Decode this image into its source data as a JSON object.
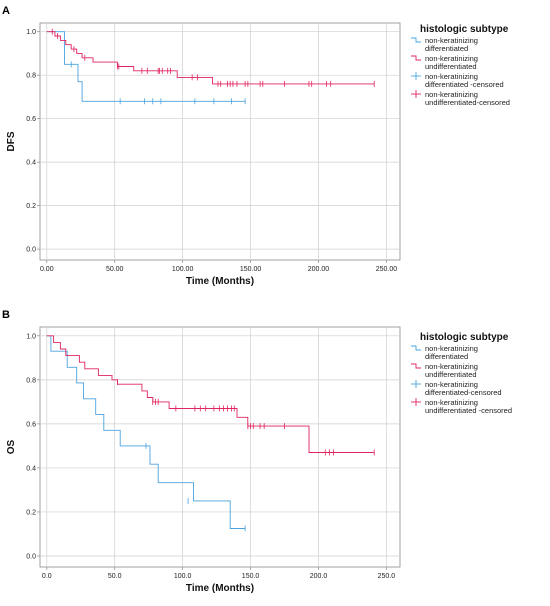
{
  "chart_data": [
    {
      "panel": "A",
      "type": "line",
      "xlabel": "Time (Months)",
      "ylabel": "DFS",
      "xlim": [
        -5,
        260
      ],
      "ylim": [
        -0.05,
        1.04
      ],
      "xticks": [
        0,
        50,
        100,
        150,
        200,
        250
      ],
      "xtick_labels": [
        "0.00",
        "50.00",
        "100.00",
        "150.00",
        "200.00",
        "250.00"
      ],
      "yticks": [
        0,
        0.2,
        0.4,
        0.6,
        0.8,
        1.0
      ],
      "ytick_labels": [
        "0.0",
        "0.2",
        "0.4",
        "0.6",
        "0.8",
        "1.0"
      ],
      "grid": true,
      "legend_title": "histologic subtype",
      "legend_placement": "right",
      "legend": [
        {
          "label": "non-keratinizing differentiated",
          "color": "#4aa3df",
          "marker": "step"
        },
        {
          "label": "non-keratinizing undifferentiated",
          "color": "#e0245e",
          "marker": "step"
        },
        {
          "label": "non-keratinizing differentiated -censored",
          "color": "#4aa3df",
          "marker": "cross"
        },
        {
          "label": "non-keratinizing undifferentiated-censored",
          "color": "#e0245e",
          "marker": "cross"
        }
      ],
      "series": [
        {
          "color": "#4aa3df",
          "steps": [
            [
              0,
              1.0
            ],
            [
              13,
              1.0
            ],
            [
              13,
              0.85
            ],
            [
              23,
              0.85
            ],
            [
              23,
              0.77
            ],
            [
              26,
              0.77
            ],
            [
              26,
              0.68
            ],
            [
              146,
              0.68
            ]
          ],
          "censored": [
            [
              18,
              0.85
            ],
            [
              54,
              0.68
            ],
            [
              72,
              0.68
            ],
            [
              78,
              0.68
            ],
            [
              84,
              0.68
            ],
            [
              109,
              0.68
            ],
            [
              123,
              0.68
            ],
            [
              136,
              0.68
            ],
            [
              146,
              0.68
            ]
          ]
        },
        {
          "color": "#e0245e",
          "steps": [
            [
              0,
              1.0
            ],
            [
              6,
              1.0
            ],
            [
              6,
              0.98
            ],
            [
              10,
              0.98
            ],
            [
              10,
              0.96
            ],
            [
              14,
              0.96
            ],
            [
              14,
              0.94
            ],
            [
              18,
              0.94
            ],
            [
              18,
              0.92
            ],
            [
              22,
              0.92
            ],
            [
              22,
              0.9
            ],
            [
              26,
              0.9
            ],
            [
              26,
              0.88
            ],
            [
              34,
              0.88
            ],
            [
              34,
              0.86
            ],
            [
              52,
              0.86
            ],
            [
              52,
              0.84
            ],
            [
              64,
              0.84
            ],
            [
              64,
              0.82
            ],
            [
              96,
              0.82
            ],
            [
              96,
              0.79
            ],
            [
              122,
              0.79
            ],
            [
              122,
              0.76
            ],
            [
              241,
              0.76
            ]
          ],
          "censored": [
            [
              4,
              1.0
            ],
            [
              8,
              0.98
            ],
            [
              20,
              0.92
            ],
            [
              28,
              0.88
            ],
            [
              52,
              0.84
            ],
            [
              53,
              0.84
            ],
            [
              70,
              0.82
            ],
            [
              74,
              0.82
            ],
            [
              82,
              0.82
            ],
            [
              83,
              0.82
            ],
            [
              85,
              0.82
            ],
            [
              89,
              0.82
            ],
            [
              91,
              0.82
            ],
            [
              107,
              0.79
            ],
            [
              111,
              0.79
            ],
            [
              126,
              0.76
            ],
            [
              128,
              0.76
            ],
            [
              133,
              0.76
            ],
            [
              135,
              0.76
            ],
            [
              137,
              0.76
            ],
            [
              140,
              0.76
            ],
            [
              146,
              0.76
            ],
            [
              148,
              0.76
            ],
            [
              157,
              0.76
            ],
            [
              159,
              0.76
            ],
            [
              175,
              0.76
            ],
            [
              193,
              0.76
            ],
            [
              195,
              0.76
            ],
            [
              206,
              0.76
            ],
            [
              209,
              0.76
            ],
            [
              241,
              0.76
            ]
          ]
        }
      ]
    },
    {
      "panel": "B",
      "type": "line",
      "xlabel": "Time (Months)",
      "ylabel": "OS",
      "xlim": [
        -5,
        260
      ],
      "ylim": [
        -0.05,
        1.04
      ],
      "xticks": [
        0,
        50,
        100,
        150,
        200,
        250
      ],
      "xtick_labels": [
        "0.0",
        "50.0",
        "100.0",
        "150.0",
        "200.0",
        "250.0"
      ],
      "yticks": [
        0,
        0.2,
        0.4,
        0.6,
        0.8,
        1.0
      ],
      "ytick_labels": [
        "0.0",
        "0.2",
        "0.4",
        "0.6",
        "0.8",
        "1.0"
      ],
      "grid": true,
      "legend_title": "histologic subtype",
      "legend_placement": "right",
      "legend": [
        {
          "label": "non-keratinizing differentiated",
          "color": "#4aa3df",
          "marker": "step"
        },
        {
          "label": "non-keratinizing undifferentiated",
          "color": "#e0245e",
          "marker": "step"
        },
        {
          "label": "non-keratinizing differentiated-censored",
          "color": "#4aa3df",
          "marker": "cross"
        },
        {
          "label": "non-keratinizing undifferentiated -censored",
          "color": "#e0245e",
          "marker": "cross"
        }
      ],
      "series": [
        {
          "color": "#4aa3df",
          "steps": [
            [
              0,
              1.0
            ],
            [
              3,
              1.0
            ],
            [
              3,
              0.93
            ],
            [
              15,
              0.93
            ],
            [
              15,
              0.857
            ],
            [
              22,
              0.857
            ],
            [
              22,
              0.786
            ],
            [
              27,
              0.786
            ],
            [
              27,
              0.714
            ],
            [
              36,
              0.714
            ],
            [
              36,
              0.643
            ],
            [
              42,
              0.643
            ],
            [
              42,
              0.571
            ],
            [
              54,
              0.571
            ],
            [
              54,
              0.5
            ],
            [
              76,
              0.5
            ],
            [
              76,
              0.417
            ],
            [
              82,
              0.417
            ],
            [
              82,
              0.333
            ],
            [
              108,
              0.333
            ],
            [
              108,
              0.25
            ],
            [
              135,
              0.25
            ],
            [
              135,
              0.125
            ],
            [
              146,
              0.125
            ]
          ],
          "censored": [
            [
              73,
              0.5
            ],
            [
              104,
              0.25
            ],
            [
              146,
              0.125
            ]
          ]
        },
        {
          "color": "#e0245e",
          "steps": [
            [
              0,
              1.0
            ],
            [
              5,
              1.0
            ],
            [
              5,
              0.97
            ],
            [
              10,
              0.97
            ],
            [
              10,
              0.94
            ],
            [
              14,
              0.94
            ],
            [
              14,
              0.91
            ],
            [
              24,
              0.91
            ],
            [
              24,
              0.88
            ],
            [
              28,
              0.88
            ],
            [
              28,
              0.85
            ],
            [
              38,
              0.85
            ],
            [
              38,
              0.82
            ],
            [
              48,
              0.82
            ],
            [
              48,
              0.8
            ],
            [
              52,
              0.8
            ],
            [
              52,
              0.78
            ],
            [
              70,
              0.78
            ],
            [
              70,
              0.75
            ],
            [
              74,
              0.75
            ],
            [
              74,
              0.72
            ],
            [
              78,
              0.72
            ],
            [
              78,
              0.7
            ],
            [
              90,
              0.7
            ],
            [
              90,
              0.67
            ],
            [
              140,
              0.67
            ],
            [
              140,
              0.63
            ],
            [
              148,
              0.63
            ],
            [
              148,
              0.59
            ],
            [
              193,
              0.59
            ],
            [
              193,
              0.47
            ],
            [
              241,
              0.47
            ]
          ],
          "censored": [
            [
              52,
              0.79
            ],
            [
              78,
              0.7
            ],
            [
              80,
              0.7
            ],
            [
              82,
              0.7
            ],
            [
              95,
              0.67
            ],
            [
              109,
              0.67
            ],
            [
              113,
              0.67
            ],
            [
              117,
              0.67
            ],
            [
              123,
              0.67
            ],
            [
              127,
              0.67
            ],
            [
              130,
              0.67
            ],
            [
              133,
              0.67
            ],
            [
              136,
              0.67
            ],
            [
              138,
              0.67
            ],
            [
              148,
              0.59
            ],
            [
              150,
              0.59
            ],
            [
              152,
              0.59
            ],
            [
              157,
              0.59
            ],
            [
              160,
              0.59
            ],
            [
              175,
              0.59
            ],
            [
              205,
              0.47
            ],
            [
              208,
              0.47
            ],
            [
              211,
              0.47
            ],
            [
              241,
              0.47
            ]
          ]
        }
      ]
    }
  ]
}
